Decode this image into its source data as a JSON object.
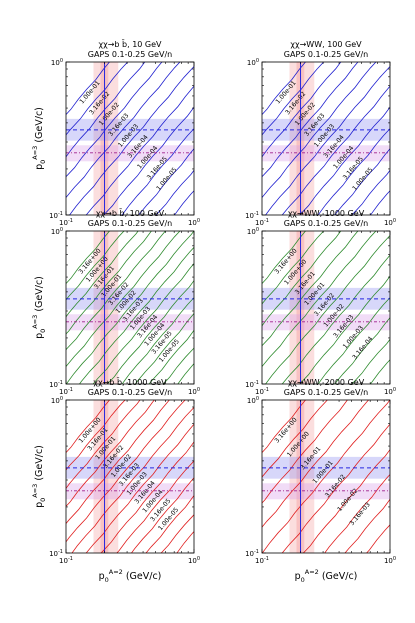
{
  "figure": {
    "xlabel": "p_0^{A=2}  (GeV/c)",
    "ylabel": "p_0^{A=3}  (GeV/c)",
    "x_tick_labels": [
      "10^{-1}",
      "10^{0}"
    ],
    "y_tick_labels": [
      "10^{-1}",
      "10^{0}"
    ]
  },
  "chart_data": [
    {
      "type": "line",
      "title": "χχ→b b̄, 10 GeV",
      "subtitle": "GAPS 0.1-0.25 GeV/n",
      "line_color": "#1f1fcf",
      "xscale": "log",
      "yscale": "log",
      "xlim": [
        0.1,
        1.0
      ],
      "ylim": [
        0.1,
        1.0
      ],
      "contour_labels": [
        "1.00e-01",
        "3.16e-02",
        "1.00e-02",
        "3.16e-03",
        "1.00e-03",
        "3.16e-04",
        "1.00e-04",
        "3.16e-05",
        "1.00e-05"
      ],
      "hline_x": 0.2,
      "vline_y": 0.255
    },
    {
      "type": "line",
      "title": "χχ→WW, 100 GeV",
      "subtitle": "GAPS 0.1-0.25 GeV/n",
      "line_color": "#1f1fcf",
      "xscale": "log",
      "yscale": "log",
      "xlim": [
        0.1,
        1.0
      ],
      "ylim": [
        0.1,
        1.0
      ],
      "contour_labels": [
        "1.00e-01",
        "3.16e-02",
        "1.00e-02",
        "3.16e-03",
        "1.00e-03",
        "3.16e-04",
        "1.00e-04",
        "3.16e-05",
        "1.00e-05"
      ],
      "hline_x": 0.2,
      "vline_y": 0.255
    },
    {
      "type": "line",
      "title": "χχ→b b̄, 100 GeV",
      "subtitle": "GAPS 0.1-0.25 GeV/n",
      "line_color": "#2e8b2e",
      "xscale": "log",
      "yscale": "log",
      "xlim": [
        0.1,
        1.0
      ],
      "ylim": [
        0.1,
        1.0
      ],
      "contour_labels": [
        "3.16e+00",
        "1.00e+00",
        "3.16e-01",
        "1.00e-01",
        "3.16e-02",
        "1.00e-02",
        "3.16e-03",
        "1.00e-03",
        "3.16e-04",
        "1.00e-04",
        "3.16e-05",
        "1.00e-05"
      ],
      "hline_x": 0.2,
      "vline_y": 0.255
    },
    {
      "type": "line",
      "title": "χχ→WW, 1000 GeV",
      "subtitle": "GAPS 0.1-0.25 GeV/n",
      "line_color": "#2e8b2e",
      "xscale": "log",
      "yscale": "log",
      "xlim": [
        0.1,
        1.0
      ],
      "ylim": [
        0.1,
        1.0
      ],
      "contour_labels": [
        "3.16e+00",
        "1.00e+00",
        "3.16e-01",
        "1.00e-01",
        "3.16e-02",
        "1.00e-02",
        "3.16e-03",
        "1.00e-03",
        "3.16e-04"
      ],
      "hline_x": 0.2,
      "vline_y": 0.255
    },
    {
      "type": "line",
      "title": "χχ→b b̄, 1000 GeV",
      "subtitle": "GAPS 0.1-0.25 GeV/n",
      "line_color": "#e01e1e",
      "xscale": "log",
      "yscale": "log",
      "xlim": [
        0.1,
        1.0
      ],
      "ylim": [
        0.1,
        1.0
      ],
      "contour_labels": [
        "1.00e+00",
        "3.16e-01",
        "1.00e-01",
        "3.16e-02",
        "1.00e-02",
        "3.16e-03",
        "1.00e-03",
        "3.16e-04",
        "1.00e-04",
        "3.16e-05",
        "1.00e-05"
      ],
      "hline_x": 0.2,
      "vline_y": 0.255
    },
    {
      "type": "line",
      "title": "χχ→WW, 2000 GeV",
      "subtitle": "GAPS 0.1-0.25 GeV/n",
      "line_color": "#e01e1e",
      "xscale": "log",
      "yscale": "log",
      "xlim": [
        0.1,
        1.0
      ],
      "ylim": [
        0.1,
        1.0
      ],
      "contour_labels": [
        "3.16e+00",
        "1.00e+00",
        "3.16e-01",
        "1.00e-01",
        "3.16e-02",
        "1.00e-02",
        "3.16e-03"
      ],
      "hline_x": 0.2,
      "vline_y": 0.255
    }
  ]
}
